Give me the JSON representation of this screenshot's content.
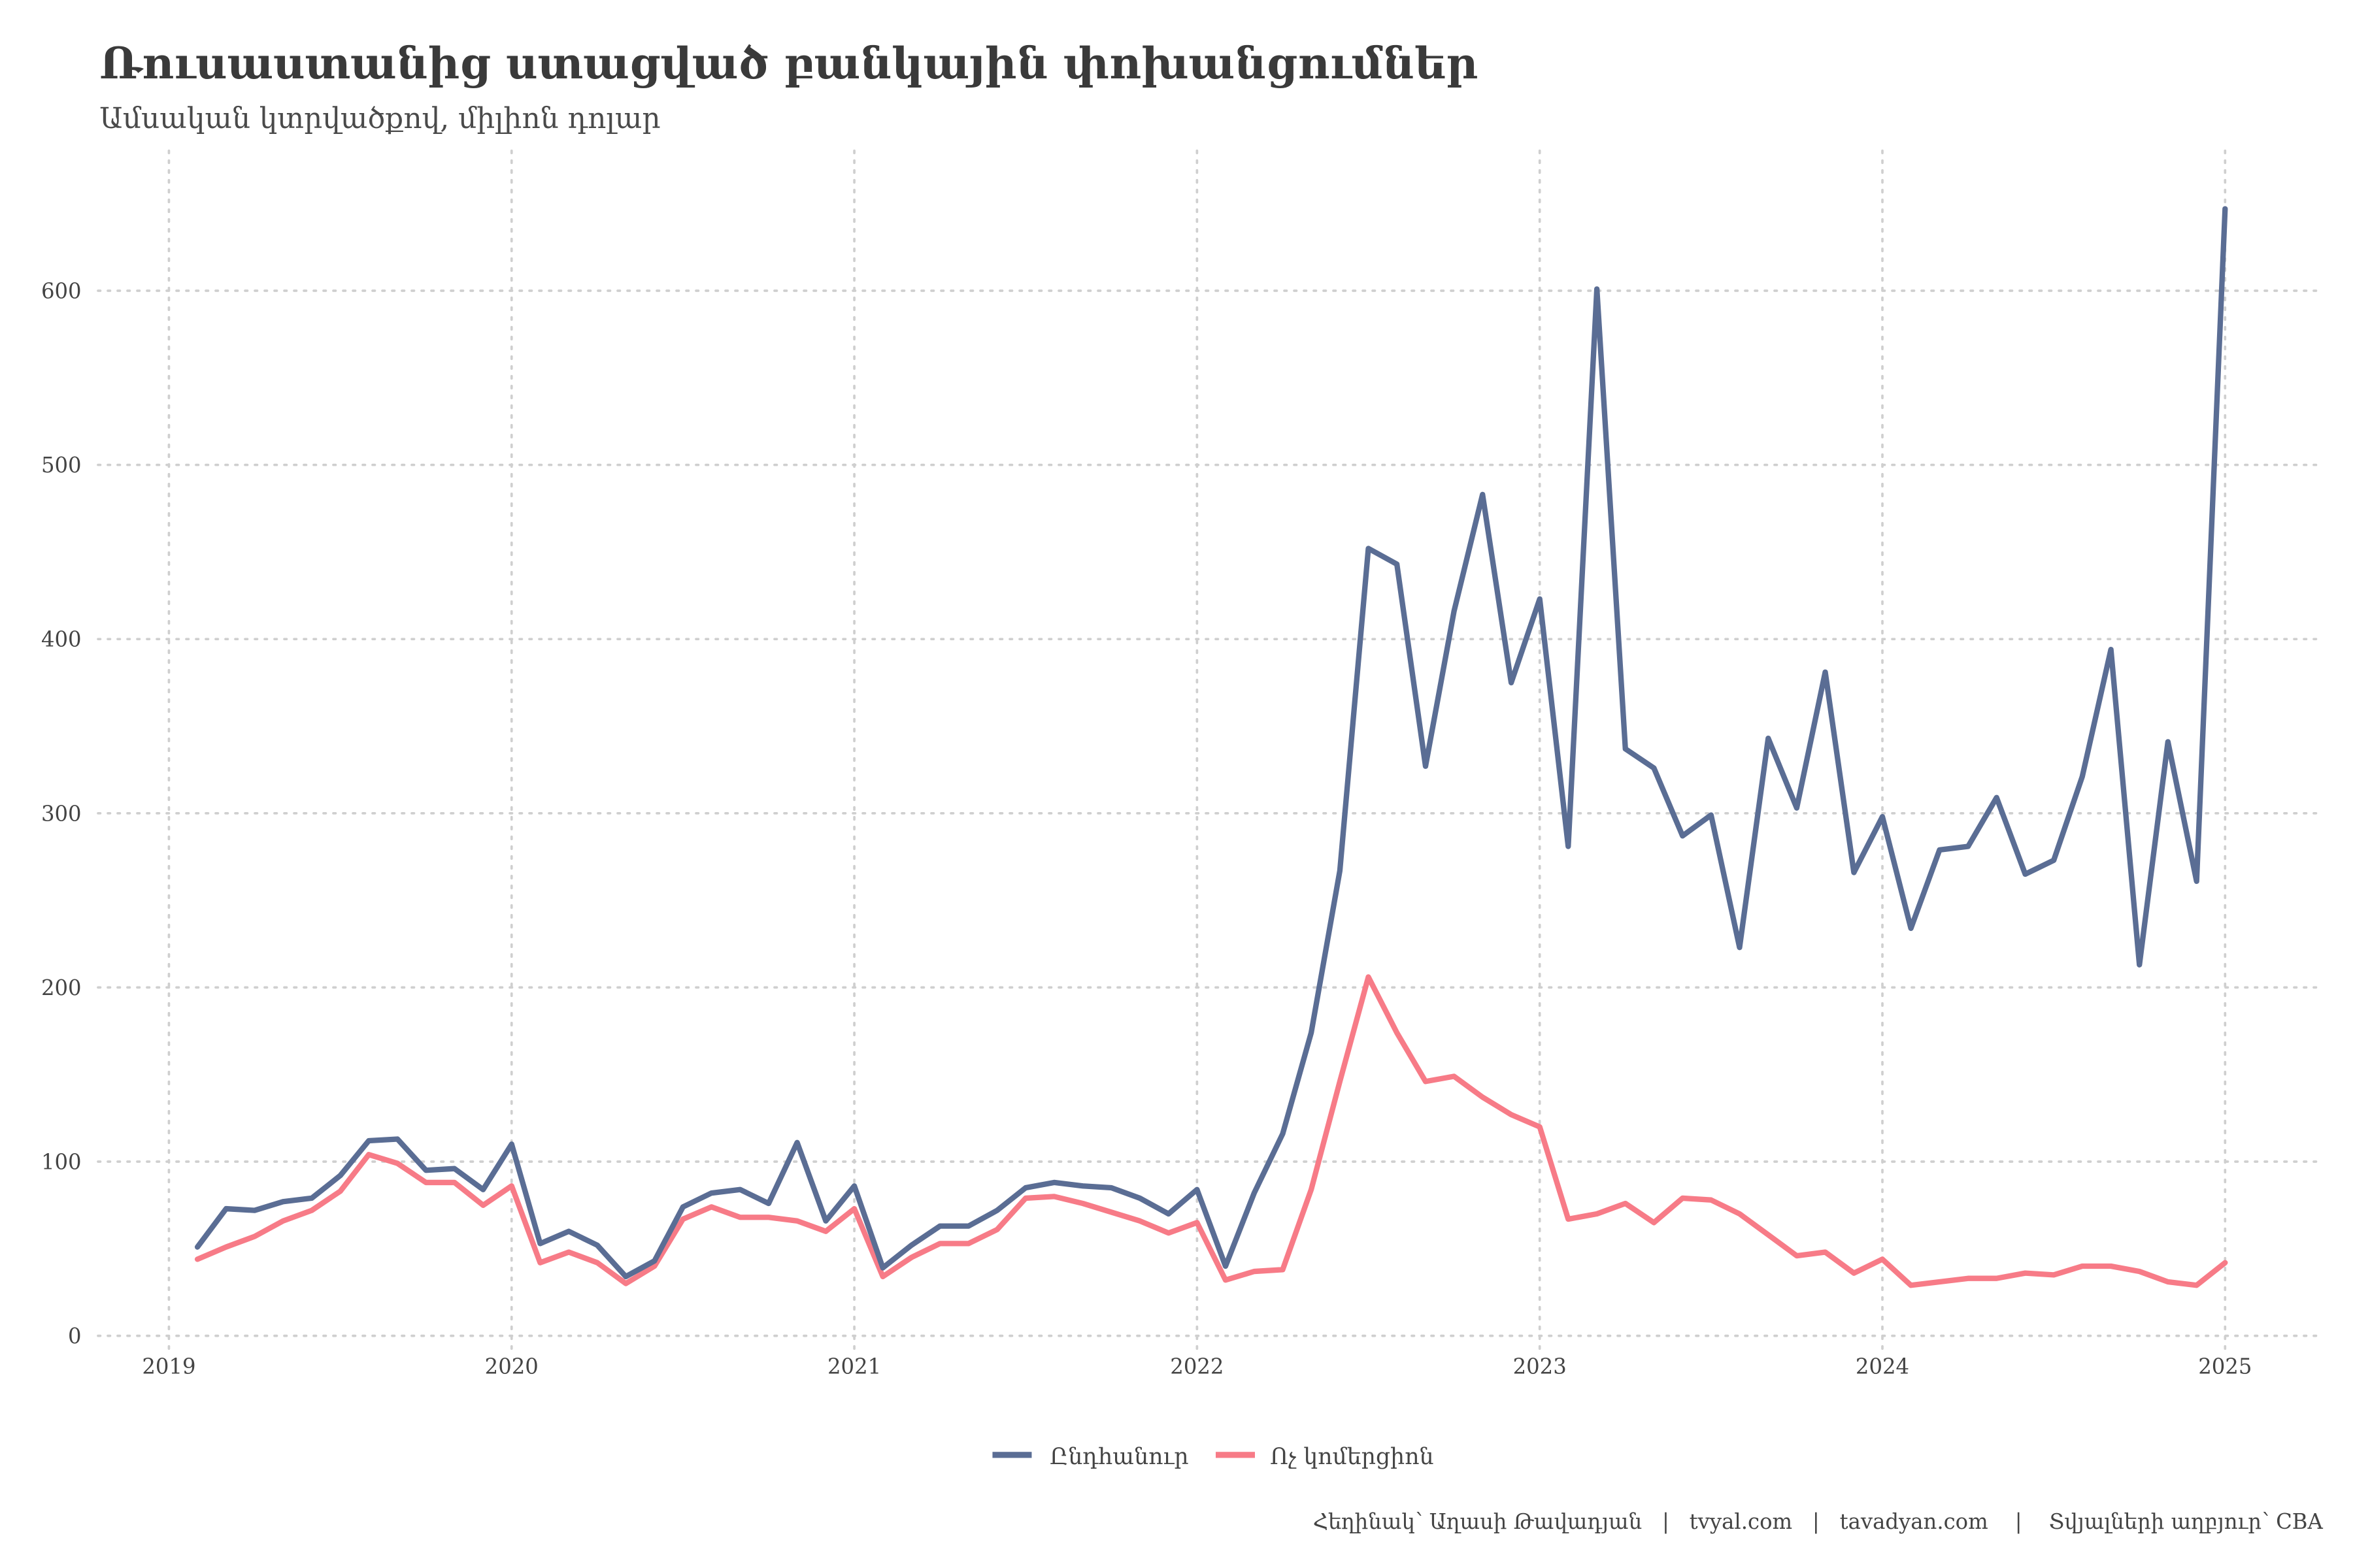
{
  "title": "Ռուսաստանից ստացված բանկային փոխանցումներ",
  "subtitle": "Ամսական կտրվածքով, միլիոն դոլար",
  "caption": "Հեղինակ՝ Աղասի Թավադյան   |   tvyal.com   |   tavadyan.com    |    Տվյալների աղբյուր՝ CBA",
  "chart_data": {
    "type": "line",
    "title": "Ռուսաստանից ստացված բանկային փոխանցումներ",
    "subtitle": "Ամսական կտրվածքով, միլիոն դոլար",
    "xlabel": "",
    "ylabel": "",
    "x_start": "2019-01",
    "x_frequency": "monthly",
    "x_ticks": [
      "2019",
      "2020",
      "2021",
      "2022",
      "2023",
      "2024",
      "2025"
    ],
    "y_ticks": [
      "0",
      "100",
      "200",
      "300",
      "400",
      "500",
      "600"
    ],
    "xlim": [
      2019,
      2025
    ],
    "ylim": [
      0,
      650
    ],
    "grid": true,
    "legend_position": "bottom",
    "series": [
      {
        "name": "Ընդհանուր",
        "color": "#5a6d94",
        "values": [
          51,
          73,
          72,
          77,
          79,
          92,
          112,
          113,
          95,
          96,
          84,
          110,
          53,
          60,
          52,
          34,
          43,
          74,
          82,
          84,
          76,
          111,
          66,
          86,
          39,
          52,
          63,
          63,
          72,
          85,
          88,
          86,
          85,
          79,
          70,
          84,
          40,
          82,
          116,
          174,
          267,
          452,
          443,
          327,
          416,
          483,
          375,
          423,
          281,
          601,
          337,
          326,
          287,
          299,
          223,
          343,
          303,
          381,
          266,
          298,
          234,
          279,
          281,
          309,
          265,
          273,
          321,
          394,
          213,
          341,
          261,
          647
        ]
      },
      {
        "name": "Ոչ կոմերցիոն",
        "color": "#f77b87",
        "values": [
          44,
          51,
          57,
          66,
          72,
          83,
          104,
          99,
          88,
          88,
          75,
          86,
          42,
          48,
          42,
          30,
          40,
          67,
          74,
          68,
          68,
          66,
          60,
          73,
          34,
          45,
          53,
          53,
          61,
          79,
          80,
          76,
          71,
          66,
          59,
          65,
          32,
          37,
          38,
          84,
          146,
          206,
          174,
          146,
          149,
          137,
          127,
          120,
          67,
          70,
          76,
          65,
          79,
          78,
          70,
          58,
          46,
          48,
          36,
          44,
          29,
          31,
          33,
          33,
          36,
          35,
          40,
          40,
          37,
          31,
          29,
          42
        ]
      }
    ]
  }
}
